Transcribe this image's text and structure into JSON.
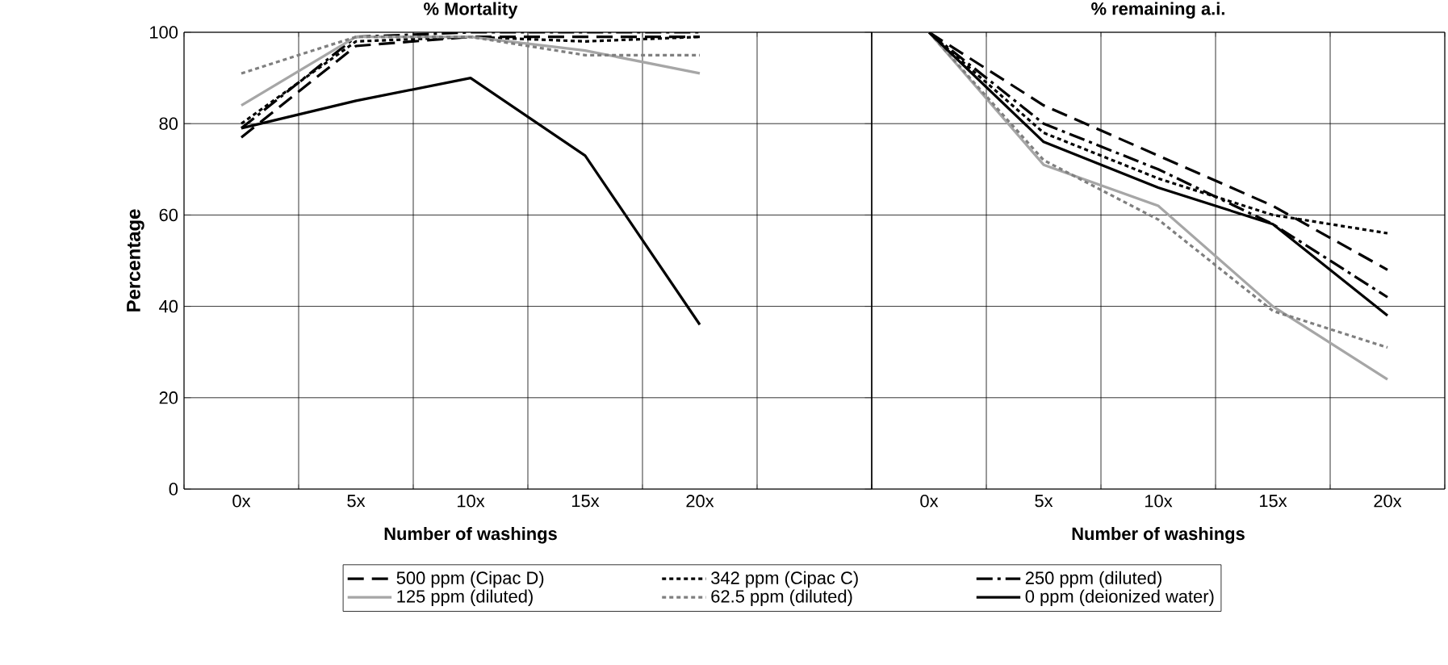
{
  "chart_data": [
    {
      "type": "line",
      "title": "% Mortality",
      "xlabel": "Number of washings",
      "ylabel": "Percentage",
      "categories": [
        "0x",
        "5x",
        "10x",
        "15x",
        "20x",
        null
      ],
      "ylim": [
        0,
        100
      ],
      "yticks": [
        0,
        20,
        40,
        60,
        80,
        100
      ],
      "grid": true,
      "legend": "bottom",
      "marker": "none",
      "series": [
        {
          "name": "500 ppm (Cipac D)",
          "color": "#000000",
          "line_style": "dashed",
          "values": [
            77,
            97,
            99,
            99,
            99,
            null
          ]
        },
        {
          "name": "342 ppm (Cipac C)",
          "color": "#000000",
          "line_style": "dotted",
          "values": [
            80,
            98,
            99,
            98,
            99,
            null
          ]
        },
        {
          "name": "250 ppm (diluted)",
          "color": "#000000",
          "line_style": "dashdot",
          "values": [
            79,
            99,
            100,
            100,
            100,
            null
          ]
        },
        {
          "name": "125 ppm (diluted)",
          "color": "#a6a6a6",
          "line_style": "solid",
          "values": [
            84,
            99,
            99,
            96,
            91,
            null
          ]
        },
        {
          "name": "62.5 ppm (diluted)",
          "color": "#7f7f7f",
          "line_style": "dotted",
          "values": [
            91,
            99,
            99,
            95,
            95,
            null
          ]
        },
        {
          "name": "0 ppm (deionized water)",
          "color": "#000000",
          "line_style": "solid",
          "values": [
            79,
            85,
            90,
            73,
            36,
            null
          ]
        }
      ]
    },
    {
      "type": "line",
      "title": "% remaining a.i.",
      "xlabel": "Number of washings",
      "categories": [
        "0x",
        "5x",
        "10x",
        "15x",
        "20x"
      ],
      "ylim": [
        0,
        100
      ],
      "yticks": [
        0,
        20,
        40,
        60,
        80,
        100
      ],
      "grid": true,
      "marker": "none",
      "tick_labels": "x",
      "series": [
        {
          "color": "#000000",
          "line_style": "dashed",
          "values": [
            100,
            84,
            73,
            62,
            48
          ]
        },
        {
          "color": "#000000",
          "line_style": "dotted",
          "values": [
            100,
            78,
            68,
            60,
            56
          ]
        },
        {
          "color": "#000000",
          "line_style": "dashdot",
          "values": [
            100,
            80,
            70,
            58,
            42
          ]
        },
        {
          "color": "#a6a6a6",
          "line_style": "solid",
          "values": [
            100,
            71,
            62,
            40,
            24
          ]
        },
        {
          "color": "#7f7f7f",
          "line_style": "dotted",
          "values": [
            100,
            72,
            59,
            39,
            31
          ]
        },
        {
          "color": "#000000",
          "line_style": "solid",
          "values": [
            100,
            76,
            66,
            58,
            38
          ]
        }
      ]
    }
  ]
}
